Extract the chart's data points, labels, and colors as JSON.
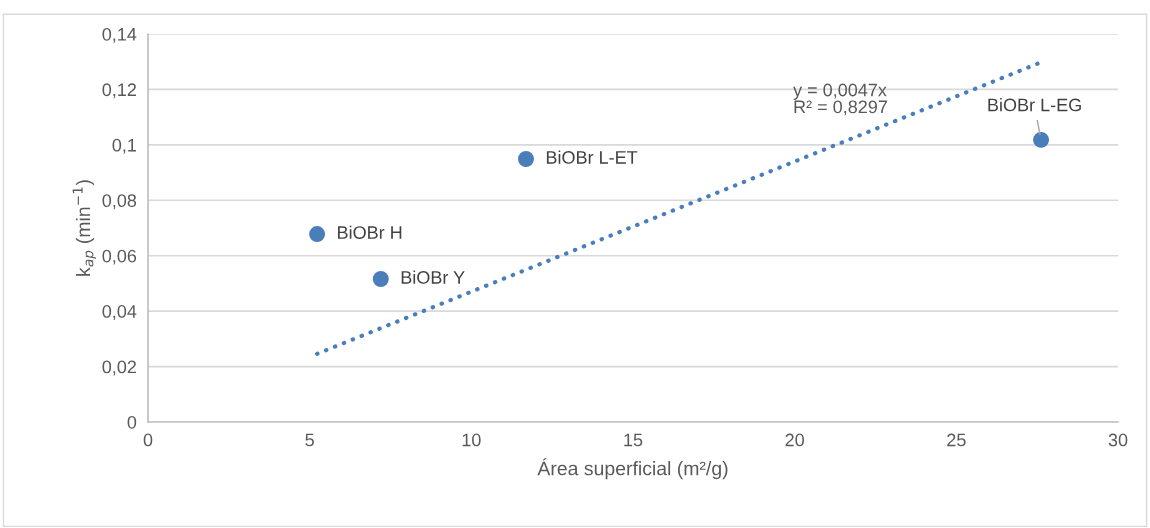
{
  "chart_data": {
    "type": "scatter",
    "xlabel": "Área superficial (m²/g)",
    "ylabel": "k$_{ap}$ (min$^{−1}$)",
    "series": [
      {
        "color": "#4a7ebb",
        "marker": "circle",
        "x": [
          5.23,
          7.2,
          11.69,
          27.62
        ],
        "values": [
          0.0678,
          0.0516,
          0.0949,
          0.1018
        ]
      },
      {
        "type": "line",
        "color": "#4a7ebb",
        "line_style": "dotted",
        "x": [
          5.23,
          27.62
        ],
        "values": [
          0.0246,
          0.1298
        ]
      }
    ],
    "annotations": [
      {
        "text": "BiOBr H",
        "x": 5.23,
        "y": 0.0678
      },
      {
        "text": "BiOBr Y",
        "x": 7.2,
        "y": 0.0516
      },
      {
        "text": "BiOBr L-ET",
        "x": 11.69,
        "y": 0.0949
      },
      {
        "text": "BiOBr L-EG",
        "x": 27.62,
        "y": 0.1018
      },
      "y = 0,0047x\nR² = 0,8297"
    ],
    "xlim": [
      0,
      30
    ],
    "xticks": [
      0,
      5,
      10,
      15,
      20,
      25,
      30
    ],
    "ylim": [
      0,
      0.14
    ],
    "yticks": [
      0,
      {
        "value": 0.02,
        "label": "0,02"
      },
      {
        "value": 0.04,
        "label": "0,04"
      },
      {
        "value": 0.06,
        "label": "0,06"
      },
      {
        "value": 0.08,
        "label": "0,08"
      },
      {
        "value": 0.1,
        "label": "0,1"
      },
      {
        "value": 0.12,
        "label": "0,12"
      },
      {
        "value": 0.14,
        "label": "0,14"
      }
    ],
    "grid": "y",
    "legend": false
  }
}
